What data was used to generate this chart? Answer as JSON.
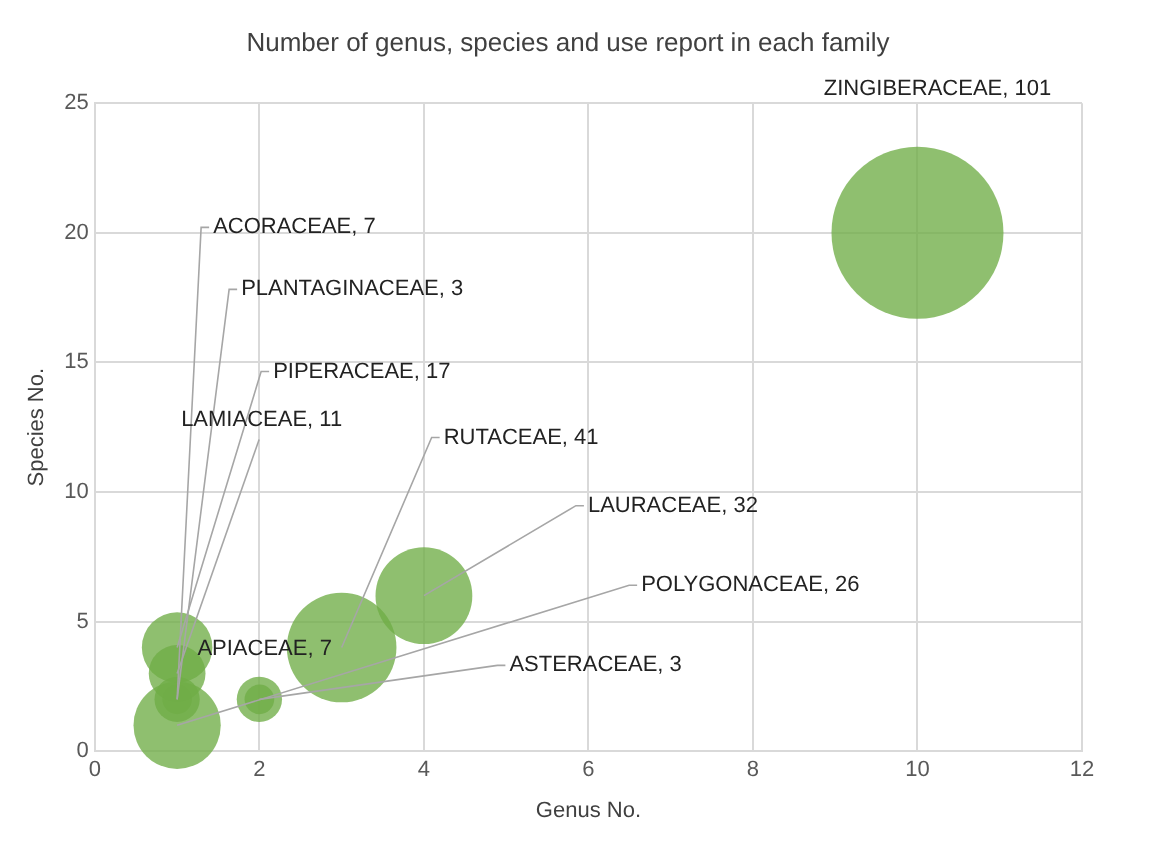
{
  "chart_data": {
    "type": "bubble",
    "title": "Number of genus, species and use report in each family",
    "xlabel": "Genus No.",
    "ylabel": "Species No.",
    "x": [
      10,
      1,
      1,
      1,
      1,
      3,
      4,
      1,
      2,
      2
    ],
    "values": [
      20,
      2,
      2,
      4,
      3,
      4,
      6,
      1,
      2,
      2
    ],
    "sizes": [
      101,
      7,
      3,
      17,
      11,
      41,
      32,
      26,
      7,
      3
    ],
    "value_labels": [
      "ZINGIBERACEAE, 101",
      "ACORACEAE, 7",
      "PLANTAGINACEAE, 3",
      "PIPERACEAE, 17",
      "LAMIACEAE, 11",
      "RUTACEAE, 41",
      "LAURACEAE, 32",
      "POLYGONACEAE, 26",
      "APIACEAE, 7",
      "ASTERACEAE, 3"
    ],
    "color": "#70ad47",
    "xlim": [
      0,
      12
    ],
    "xticks": [
      0,
      2,
      4,
      6,
      8,
      10,
      12
    ],
    "ylim": [
      0,
      25
    ],
    "yticks": [
      0,
      5,
      10,
      15,
      20,
      25
    ],
    "grid": true,
    "legend": false
  }
}
